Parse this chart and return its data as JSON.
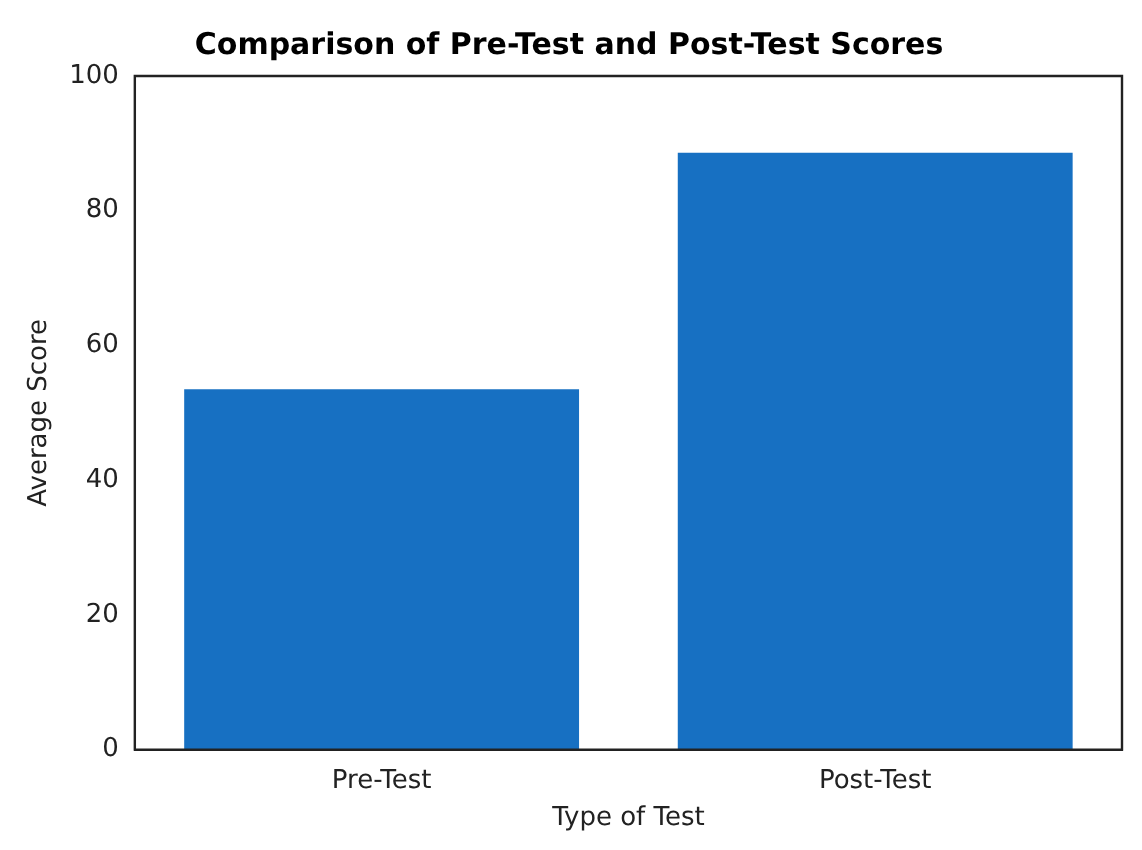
{
  "chart_data": {
    "type": "bar",
    "title": "Comparison of Pre-Test and Post-Test Scores",
    "xlabel": "Type of Test",
    "ylabel": "Average Score",
    "categories": [
      "Pre-Test",
      "Post-Test"
    ],
    "values": [
      53.5,
      88.6
    ],
    "color": "#1770c2",
    "ylim": [
      0,
      100
    ],
    "yticks": [
      0,
      20,
      40,
      60,
      80,
      100
    ],
    "grid": false,
    "legend": false
  }
}
